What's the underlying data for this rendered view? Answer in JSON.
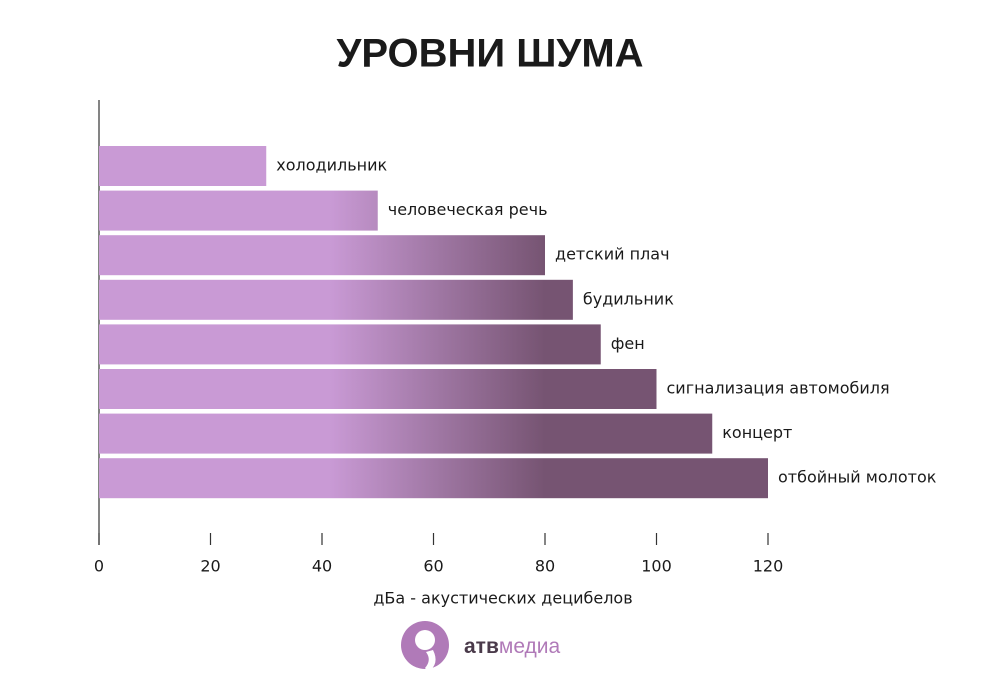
{
  "chart_data": {
    "type": "bar",
    "orientation": "horizontal",
    "title": "УРОВНИ ШУМА",
    "x_label": "дБа - акустических децибелов",
    "categories": [
      "холодильник",
      "человеческая речь",
      "детский плач",
      "будильник",
      "фен",
      "сигнализация автомобиля",
      "концерт",
      "отбойный молоток"
    ],
    "values": [
      30,
      50,
      80,
      85,
      90,
      100,
      110,
      120
    ],
    "colors": [
      "#c99ad5",
      "#765472"
    ],
    "xlim": [
      0,
      120
    ],
    "xticks": [
      0,
      20,
      40,
      60,
      80,
      100,
      120
    ]
  },
  "logo": {
    "bold": "атв",
    "light": "медиа"
  }
}
